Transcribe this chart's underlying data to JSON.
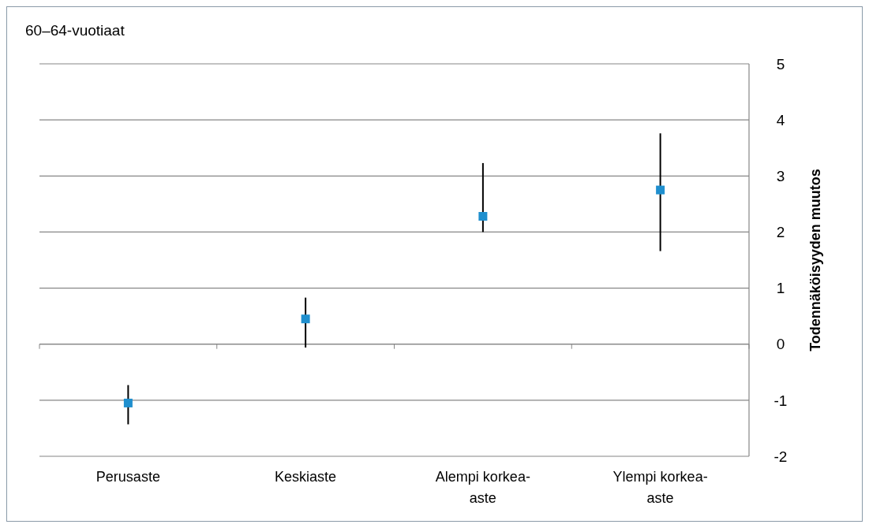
{
  "chart_data": {
    "type": "scatter",
    "title": "60–64-vuotiaat",
    "ylabel": "Todennäköisyyden  muutos",
    "categories": [
      "Perusaste",
      "Keskiaste",
      "Alempi korkea-aste",
      "Ylempi korkea-aste"
    ],
    "values": [
      -1.05,
      0.45,
      2.28,
      2.75
    ],
    "errors": [
      [
        -1.43,
        -0.73
      ],
      [
        -0.06,
        0.83
      ],
      [
        2.0,
        3.23
      ],
      [
        1.66,
        3.76
      ]
    ],
    "color": "#1f8fce",
    "marker": "square",
    "ylim": [
      -2,
      5
    ],
    "yticks": [
      -2,
      -1,
      0,
      1,
      2,
      3,
      4,
      5
    ],
    "grid": "y"
  }
}
